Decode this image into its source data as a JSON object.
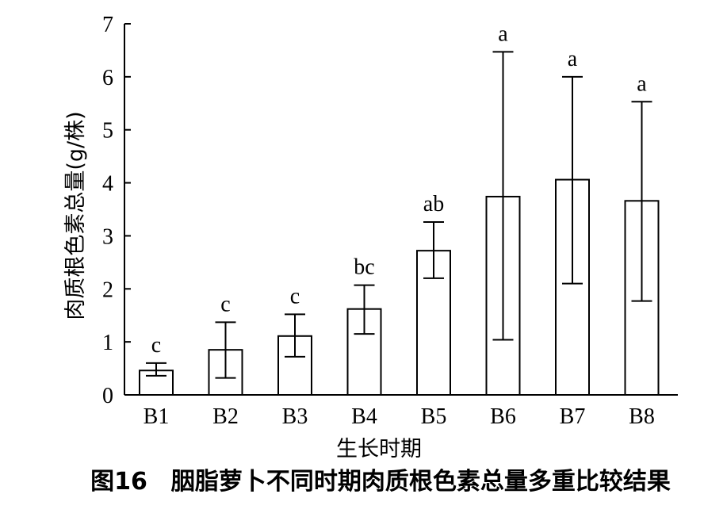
{
  "chart_data": {
    "type": "bar",
    "title": "",
    "caption": "图16　胭脂萝卜不同时期肉质根色素总量多重比较结果",
    "xlabel": "生长时期",
    "ylabel": "肉质根色素总量(g/株)",
    "ylim": [
      0,
      7
    ],
    "yticks": [
      0,
      1,
      2,
      3,
      4,
      5,
      6,
      7
    ],
    "categories": [
      "B1",
      "B2",
      "B3",
      "B4",
      "B5",
      "B6",
      "B7",
      "B8"
    ],
    "values": [
      0.46,
      0.85,
      1.11,
      1.62,
      2.72,
      3.74,
      4.06,
      3.66
    ],
    "error_low": [
      0.36,
      0.32,
      0.72,
      1.15,
      2.2,
      1.04,
      2.1,
      1.77
    ],
    "error_high": [
      0.6,
      1.37,
      1.52,
      2.07,
      3.26,
      6.47,
      6.0,
      5.53
    ],
    "significance_labels": [
      "c",
      "c",
      "c",
      "bc",
      "ab",
      "a",
      "a",
      "a"
    ],
    "grid": false,
    "legend": "none"
  },
  "colors": {
    "bar_fill": "#ffffff",
    "stroke": "#000000",
    "text": "#000000"
  }
}
